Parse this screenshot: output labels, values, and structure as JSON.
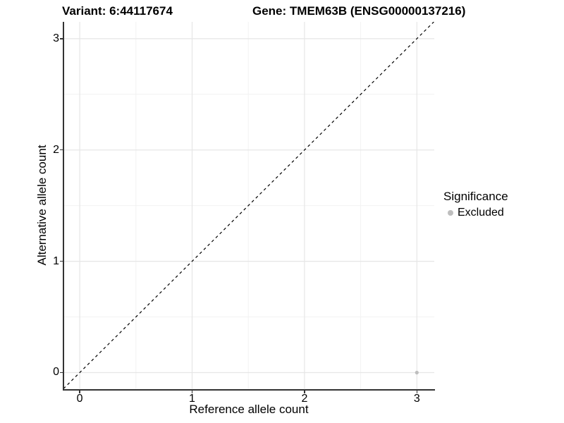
{
  "figure": {
    "title_left": "Variant: 6:44117674",
    "title_right": "Gene: TMEM63B (ENSG00000137216)"
  },
  "chart_data": {
    "type": "scatter",
    "title": "Variant: 6:44117674   Gene: TMEM63B (ENSG00000137216)",
    "xlabel": "Reference allele count",
    "ylabel": "Alternative allele count",
    "xlim": [
      -0.145,
      3.155
    ],
    "ylim": [
      -0.149,
      3.151
    ],
    "x_ticks": [
      0,
      1,
      2,
      3
    ],
    "y_ticks": [
      0,
      1,
      2,
      3
    ],
    "x_minor_ticks": [
      0.5,
      1.5,
      2.5
    ],
    "y_minor_ticks": [
      0.5,
      1.5,
      2.5
    ],
    "grid": true,
    "reference_line": {
      "kind": "identity",
      "style": "dashed",
      "slope": 1,
      "intercept": 0
    },
    "series": [
      {
        "name": "Excluded",
        "color": "#bebebe",
        "points": [
          {
            "x": 3,
            "y": 0
          }
        ]
      }
    ],
    "legend": {
      "position": "right",
      "title": "Significance",
      "entries": [
        {
          "label": "Excluded",
          "color": "#bebebe",
          "marker": "circle"
        }
      ]
    },
    "colors": {
      "grid_major": "#e6e6e6",
      "grid_minor": "#f2f2f2",
      "axis_line": "#333333",
      "reference_line": "#000000",
      "point": "#bebebe",
      "background": "#ffffff",
      "text": "#000000"
    }
  }
}
